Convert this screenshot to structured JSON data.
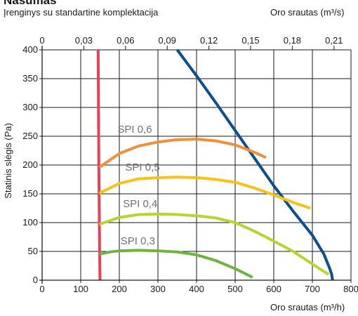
{
  "header": {
    "title": "Našumas",
    "subtitle": "Įrenginys su standartine komplektacija",
    "top_axis_label": "Oro srautas (m³/s)",
    "bottom_axis_label": "Oro srautas (m³/h)"
  },
  "chart_data": {
    "type": "line",
    "title": "Našumas",
    "subtitle": "Įrenginys su standartine komplektacija",
    "xlabel": "Oro srautas (m³/h)",
    "x2label": "Oro srautas (m³/s)",
    "ylabel": "Statinis slėgis (Pa)",
    "xlim": [
      0,
      800
    ],
    "ylim": [
      0,
      400
    ],
    "x_ticks": [
      0,
      100,
      200,
      300,
      400,
      500,
      600,
      700,
      800
    ],
    "y_ticks": [
      0,
      50,
      100,
      150,
      200,
      250,
      300,
      350,
      400
    ],
    "x2_ticks": [
      "0",
      "0,03",
      "0,06",
      "0,09",
      "0,12",
      "0,15",
      "0,18",
      "0,21"
    ],
    "x2_values_m3s": [
      0,
      0.03,
      0.06,
      0.09,
      0.12,
      0.15,
      0.18,
      0.21
    ],
    "grid": true,
    "series": [
      {
        "name": "",
        "color": "#0a4f92",
        "x": [
          350,
          400,
          450,
          500,
          550,
          600,
          650,
          700,
          730,
          745,
          750,
          752,
          752
        ],
        "y": [
          400,
          355,
          308,
          260,
          212,
          164,
          120,
          78,
          45,
          20,
          10,
          2,
          0
        ]
      },
      {
        "name": "",
        "color": "#e84058",
        "x": [
          145,
          147,
          149,
          150
        ],
        "y": [
          400,
          200,
          50,
          0
        ]
      },
      {
        "name": "SPI 0,6",
        "color": "#f0903a",
        "x": [
          148,
          200,
          250,
          300,
          350,
          400,
          450,
          500,
          550,
          580
        ],
        "y": [
          196,
          220,
          233,
          240,
          244,
          245,
          242,
          235,
          222,
          213
        ]
      },
      {
        "name": "SPI 0,5",
        "color": "#f8c21a",
        "x": [
          148,
          200,
          250,
          300,
          350,
          400,
          450,
          500,
          550,
          600,
          650,
          695
        ],
        "y": [
          151,
          168,
          176,
          178,
          179,
          178,
          175,
          170,
          160,
          148,
          135,
          125
        ]
      },
      {
        "name": "SPI 0,4",
        "color": "#b8d430",
        "x": [
          148,
          200,
          250,
          300,
          350,
          400,
          450,
          500,
          550,
          600,
          650,
          700,
          742
        ],
        "y": [
          97,
          109,
          114,
          115,
          114,
          112,
          108,
          100,
          85,
          68,
          50,
          28,
          10
        ]
      },
      {
        "name": "SPI 0,3",
        "color": "#6cb53e",
        "x": [
          148,
          175,
          200,
          250,
          300,
          350,
          400,
          450,
          500,
          545
        ],
        "y": [
          45,
          49,
          51,
          52,
          51,
          49,
          44,
          34,
          20,
          5
        ]
      }
    ],
    "annotations": [
      {
        "text": "SPI 0,6",
        "x": 240,
        "y": 256
      },
      {
        "text": "SPI 0,5",
        "x": 260,
        "y": 190
      },
      {
        "text": "SPI 0,4",
        "x": 254,
        "y": 127
      },
      {
        "text": "SPI 0,3",
        "x": 248,
        "y": 62
      }
    ]
  }
}
